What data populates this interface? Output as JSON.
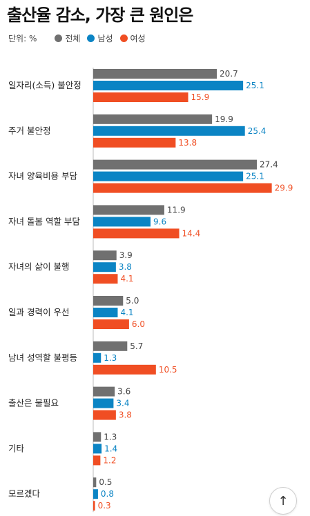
{
  "chart_data": {
    "type": "bar",
    "orientation": "horizontal",
    "title": "출산율 감소, 가장 큰 원인은",
    "unit": "단위: %",
    "legend_position": "top-left",
    "grid": false,
    "xlim": [
      0,
      30
    ],
    "categories": [
      "일자리(소득) 불안정",
      "주거 불안정",
      "자녀 양육비용 부담",
      "자녀 돌봄 역할 부담",
      "자녀의 삶이 불행",
      "일과 경력이 우선",
      "남녀 성역할 불평등",
      "출산은 불필요",
      "기타",
      "모르겠다"
    ],
    "series": [
      {
        "name": "전체",
        "color": "#707070",
        "values": [
          20.7,
          19.9,
          27.4,
          11.9,
          3.9,
          5.0,
          5.7,
          3.6,
          1.3,
          0.5
        ],
        "labels": [
          "20.7",
          "19.9",
          "27.4",
          "11.9",
          "3.9",
          "5.0",
          "5.7",
          "3.6",
          "1.3",
          "0.5"
        ]
      },
      {
        "name": "남성",
        "color": "#0b84c4",
        "values": [
          25.1,
          25.4,
          25.1,
          9.6,
          3.8,
          4.1,
          1.3,
          3.4,
          1.4,
          0.8
        ],
        "labels": [
          "25.1",
          "25.4",
          "25.1",
          "9.6",
          "3.8",
          "4.1",
          "1.3",
          "3.4",
          "1.4",
          "0.8"
        ]
      },
      {
        "name": "여성",
        "color": "#f04e23",
        "values": [
          15.9,
          13.8,
          29.9,
          14.4,
          4.1,
          6.0,
          10.5,
          3.8,
          1.2,
          0.3
        ],
        "labels": [
          "15.9",
          "13.8",
          "29.9",
          "14.4",
          "4.1",
          "6.0",
          "10.5",
          "3.8",
          "1.2",
          "0.3"
        ]
      }
    ]
  },
  "scroll_top_glyph": "↑"
}
